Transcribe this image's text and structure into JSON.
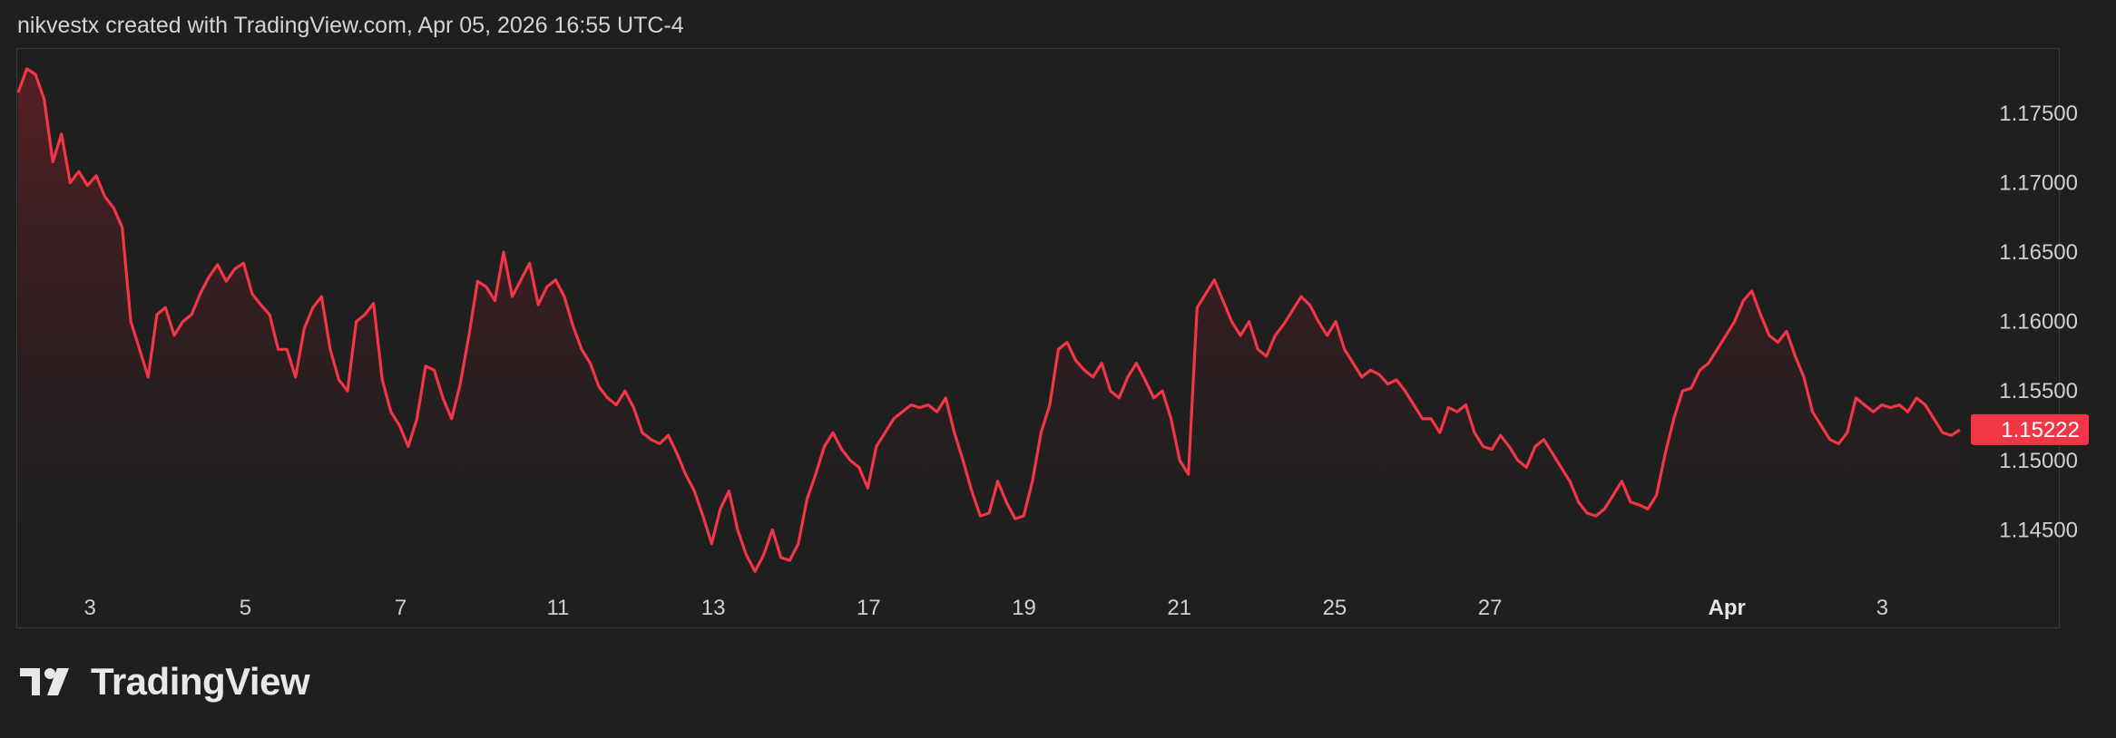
{
  "header": {
    "caption": "nikvestx created with TradingView.com, Apr 05, 2026 16:55 UTC-4"
  },
  "brand": {
    "name": "TradingView",
    "logo_icon": "tradingview-logo-icon"
  },
  "colors": {
    "background": "#1f1f1f",
    "line": "#f23645",
    "area_top": "#5a1d24",
    "price_tag": "#f23645",
    "text": "#d0d0d0"
  },
  "chart_data": {
    "type": "area",
    "ylim": [
      1.1415,
      1.1795
    ],
    "y_ticks": [
      "1.17500",
      "1.17000",
      "1.16500",
      "1.16000",
      "1.15500",
      "1.15000",
      "1.14500"
    ],
    "y_tick_values": [
      1.175,
      1.17,
      1.165,
      1.16,
      1.155,
      1.15,
      1.145
    ],
    "x_ticks": [
      {
        "label": "3",
        "t": 0.037
      },
      {
        "label": "5",
        "t": 0.117
      },
      {
        "label": "7",
        "t": 0.197
      },
      {
        "label": "11",
        "t": 0.278
      },
      {
        "label": "13",
        "t": 0.358
      },
      {
        "label": "17",
        "t": 0.438
      },
      {
        "label": "19",
        "t": 0.518
      },
      {
        "label": "21",
        "t": 0.598
      },
      {
        "label": "25",
        "t": 0.678
      },
      {
        "label": "27",
        "t": 0.758
      },
      {
        "label": "Apr",
        "t": 0.88,
        "bold": true
      },
      {
        "label": "3",
        "t": 0.96
      }
    ],
    "last_price": "1.15222",
    "last_price_value": 1.15222,
    "grid": false,
    "series": [
      {
        "values": [
          1.1765,
          1.1782,
          1.1778,
          1.176,
          1.1715,
          1.1735,
          1.17,
          1.1708,
          1.1698,
          1.1705,
          1.169,
          1.1682,
          1.1668,
          1.16,
          1.158,
          1.156,
          1.1605,
          1.161,
          1.159,
          1.16,
          1.1605,
          1.162,
          1.1632,
          1.1641,
          1.1629,
          1.1638,
          1.1642,
          1.162,
          1.1612,
          1.1605,
          1.158,
          1.158,
          1.156,
          1.1595,
          1.161,
          1.1618,
          1.158,
          1.1558,
          1.155,
          1.16,
          1.1605,
          1.1613,
          1.1558,
          1.1535,
          1.1525,
          1.151,
          1.153,
          1.1568,
          1.1565,
          1.1545,
          1.153,
          1.1555,
          1.159,
          1.1629,
          1.1625,
          1.1615,
          1.165,
          1.1618,
          1.163,
          1.1642,
          1.1612,
          1.1625,
          1.163,
          1.1618,
          1.1597,
          1.158,
          1.157,
          1.1553,
          1.1545,
          1.154,
          1.155,
          1.1538,
          1.152,
          1.1515,
          1.1512,
          1.1518,
          1.1505,
          1.149,
          1.1478,
          1.146,
          1.144,
          1.1465,
          1.1478,
          1.145,
          1.1432,
          1.142,
          1.1432,
          1.145,
          1.143,
          1.1428,
          1.144,
          1.1472,
          1.149,
          1.151,
          1.152,
          1.1508,
          1.15,
          1.1495,
          1.148,
          1.151,
          1.152,
          1.153,
          1.1535,
          1.154,
          1.1538,
          1.154,
          1.1535,
          1.1545,
          1.152,
          1.15,
          1.1478,
          1.146,
          1.1462,
          1.1485,
          1.147,
          1.1458,
          1.146,
          1.1485,
          1.152,
          1.154,
          1.158,
          1.1585,
          1.1572,
          1.1565,
          1.156,
          1.157,
          1.155,
          1.1545,
          1.156,
          1.157,
          1.1558,
          1.1545,
          1.155,
          1.153,
          1.15,
          1.149,
          1.161,
          1.162,
          1.163,
          1.1615,
          1.16,
          1.159,
          1.16,
          1.158,
          1.1575,
          1.159,
          1.1598,
          1.1608,
          1.1618,
          1.1612,
          1.16,
          1.159,
          1.16,
          1.158,
          1.157,
          1.156,
          1.1565,
          1.1562,
          1.1555,
          1.1558,
          1.155,
          1.154,
          1.153,
          1.153,
          1.152,
          1.1538,
          1.1535,
          1.154,
          1.152,
          1.151,
          1.1508,
          1.1518,
          1.151,
          1.15,
          1.1495,
          1.151,
          1.1515,
          1.1505,
          1.1495,
          1.1485,
          1.147,
          1.1462,
          1.146,
          1.1465,
          1.1475,
          1.1485,
          1.147,
          1.1468,
          1.1465,
          1.1475,
          1.1505,
          1.153,
          1.155,
          1.1552,
          1.1565,
          1.157,
          1.158,
          1.159,
          1.16,
          1.1615,
          1.1622,
          1.1605,
          1.159,
          1.1585,
          1.1593,
          1.1575,
          1.156,
          1.1535,
          1.1525,
          1.1515,
          1.1512,
          1.152,
          1.1545,
          1.154,
          1.1535,
          1.154,
          1.1538,
          1.154,
          1.1535,
          1.1545,
          1.154,
          1.153,
          1.152,
          1.1518,
          1.1522
        ]
      }
    ]
  }
}
